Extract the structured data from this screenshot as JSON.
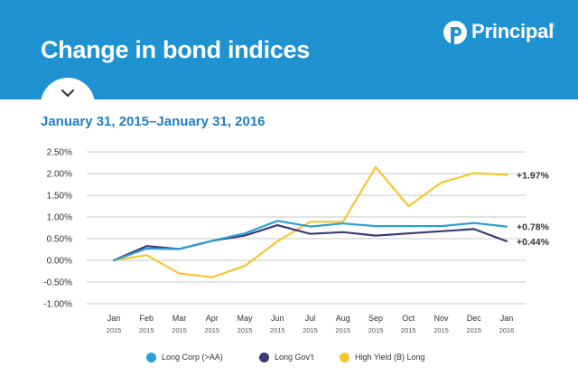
{
  "header": {
    "title": "Change in bond indices",
    "brand": "Principal",
    "trademark": "®"
  },
  "subtitle": "January 31, 2015–January 31, 2016",
  "colors": {
    "header_bg": "#1f92d2",
    "subtitle": "#1f7fc1",
    "grid": "#c8c8c8"
  },
  "chart_data": {
    "type": "line",
    "categories": [
      "Jan 2015",
      "Feb 2015",
      "Mar 2015",
      "Apr 2015",
      "May 2015",
      "Jun 2015",
      "Jul 2015",
      "Aug 2015",
      "Sep 2015",
      "Oct 2015",
      "Nov 2015",
      "Dec 2015",
      "Jan 2016"
    ],
    "x_tick_labels": [
      [
        "Jan",
        "2015"
      ],
      [
        "Feb",
        "2015"
      ],
      [
        "Mar",
        "2015"
      ],
      [
        "Apr",
        "2015"
      ],
      [
        "May",
        "2015"
      ],
      [
        "Jun",
        "2015"
      ],
      [
        "Jul",
        "2015"
      ],
      [
        "Aug",
        "2015"
      ],
      [
        "Sep",
        "2015"
      ],
      [
        "Oct",
        "2015"
      ],
      [
        "Nov",
        "2015"
      ],
      [
        "Dec",
        "2015"
      ],
      [
        "Jan",
        "2016"
      ]
    ],
    "y_ticks": [
      2.5,
      2.0,
      1.5,
      1.0,
      0.5,
      0.0,
      -0.5,
      -1.0
    ],
    "y_tick_labels": [
      "2.50%",
      "2.00%",
      "1.50%",
      "1.00%",
      "0.50%",
      "0.00%",
      "-0.50%",
      "-1.00%"
    ],
    "ylim": [
      -1.0,
      2.5
    ],
    "grid": true,
    "legend_position": "bottom",
    "series": [
      {
        "name": "Long Corp (>AA)",
        "color": "#2a9fd8",
        "values": [
          0.0,
          0.27,
          0.26,
          0.45,
          0.62,
          0.91,
          0.78,
          0.85,
          0.79,
          0.79,
          0.79,
          0.86,
          0.78
        ],
        "end_label": "+0.78%"
      },
      {
        "name": "Long Gov't",
        "color": "#3c3c73",
        "values": [
          0.0,
          0.33,
          0.26,
          0.45,
          0.57,
          0.81,
          0.61,
          0.65,
          0.57,
          0.62,
          0.67,
          0.72,
          0.44
        ],
        "end_label": "+0.44%"
      },
      {
        "name": "High Yield (B) Long",
        "color": "#f7c531",
        "values": [
          0.0,
          0.12,
          -0.3,
          -0.39,
          -0.13,
          0.44,
          0.89,
          0.89,
          2.15,
          1.25,
          1.79,
          2.01,
          1.97
        ],
        "end_label": "+1.97%"
      }
    ]
  }
}
